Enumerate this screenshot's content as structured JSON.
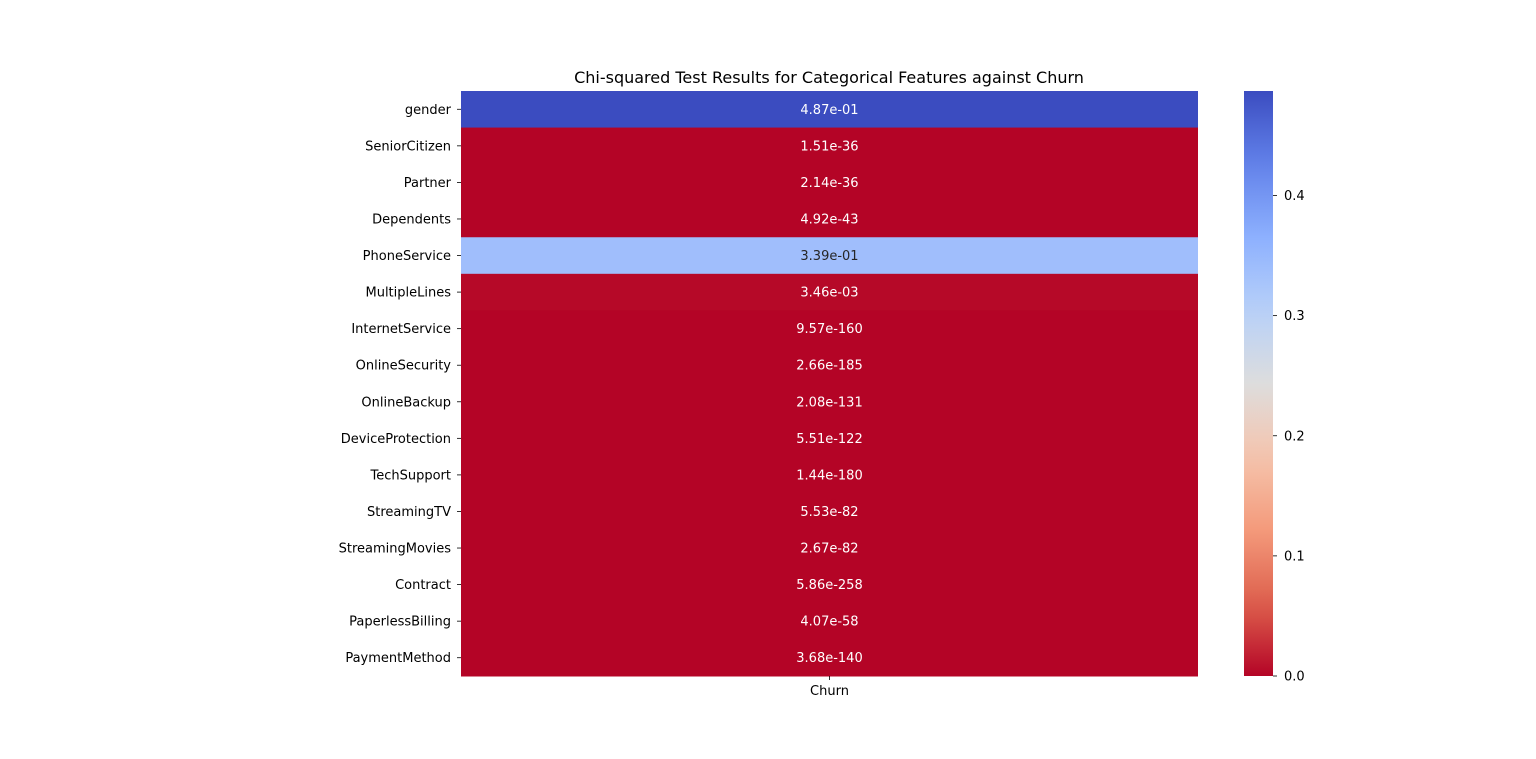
{
  "chart_data": {
    "type": "heatmap",
    "title": "Chi-squared Test Results for Categorical Features against Churn",
    "x_categories": [
      "Churn"
    ],
    "y_categories": [
      "gender",
      "SeniorCitizen",
      "Partner",
      "Dependents",
      "PhoneService",
      "MultipleLines",
      "InternetService",
      "OnlineSecurity",
      "OnlineBackup",
      "DeviceProtection",
      "TechSupport",
      "StreamingTV",
      "StreamingMovies",
      "Contract",
      "PaperlessBilling",
      "PaymentMethod"
    ],
    "values": [
      0.487,
      1.51e-36,
      2.14e-36,
      4.92e-43,
      0.339,
      0.00346,
      9.57e-160,
      2.66e-185,
      2.08e-131,
      5.51e-122,
      1.44e-180,
      5.53e-82,
      2.67e-82,
      5.86e-258,
      4.07e-58,
      3.68e-140
    ],
    "annotations": [
      "4.87e-01",
      "1.51e-36",
      "2.14e-36",
      "4.92e-43",
      "3.39e-01",
      "3.46e-03",
      "9.57e-160",
      "2.66e-185",
      "2.08e-131",
      "5.51e-122",
      "1.44e-180",
      "5.53e-82",
      "2.67e-82",
      "5.86e-258",
      "4.07e-58",
      "3.68e-140"
    ],
    "colormap": "coolwarm_r",
    "colorbar": {
      "range": [
        0.0,
        0.487
      ],
      "ticks": [
        0.0,
        0.1,
        0.2,
        0.3,
        0.4
      ],
      "tick_labels": [
        "0.0",
        "0.1",
        "0.2",
        "0.3",
        "0.4"
      ]
    }
  }
}
